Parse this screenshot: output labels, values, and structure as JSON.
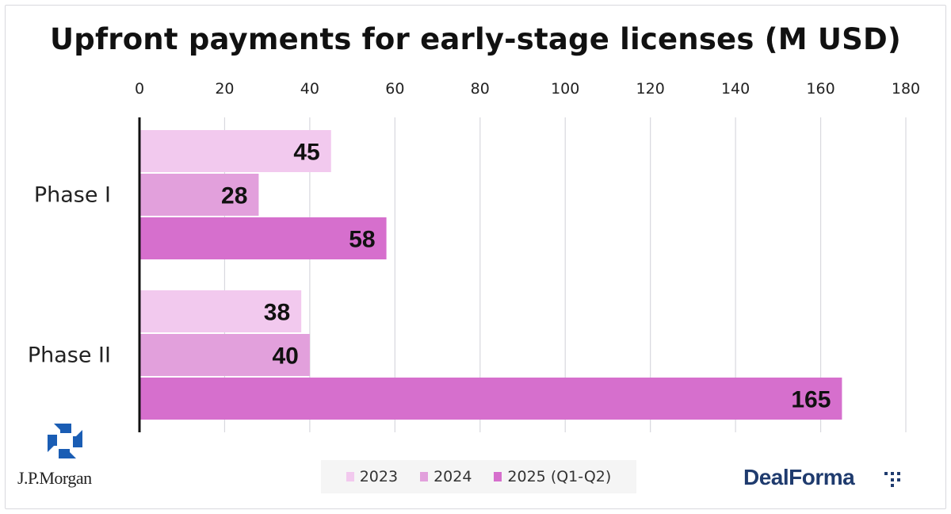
{
  "chart_data": {
    "type": "bar",
    "orientation": "horizontal",
    "title": "Upfront payments for early-stage licenses (M USD)",
    "categories": [
      "Phase I",
      "Phase II"
    ],
    "series": [
      {
        "name": "2023",
        "values": [
          45,
          38
        ],
        "color": "#f2c9ee"
      },
      {
        "name": "2024",
        "values": [
          28,
          40
        ],
        "color": "#e2a0dc"
      },
      {
        "name": "2025 (Q1-Q2)",
        "values": [
          58,
          165
        ],
        "color": "#d66fcd"
      }
    ],
    "xlim": [
      0,
      180
    ],
    "ticks": [
      0,
      20,
      40,
      60,
      80,
      100,
      120,
      140,
      160,
      180
    ],
    "axis_position": "top",
    "grid": true,
    "legend_position": "bottom"
  },
  "legend": {
    "items": [
      "2023",
      "2024",
      "2025 (Q1-Q2)"
    ]
  },
  "branding": {
    "left_logo_text": "J.P.Morgan",
    "left_logo_icon": "jpmorgan-octagon-icon",
    "right_logo_text": "DealForma",
    "right_logo_icon": "dots-icon",
    "left_icon_color": "#1a5db4",
    "right_text_color": "#1f3b6e"
  }
}
